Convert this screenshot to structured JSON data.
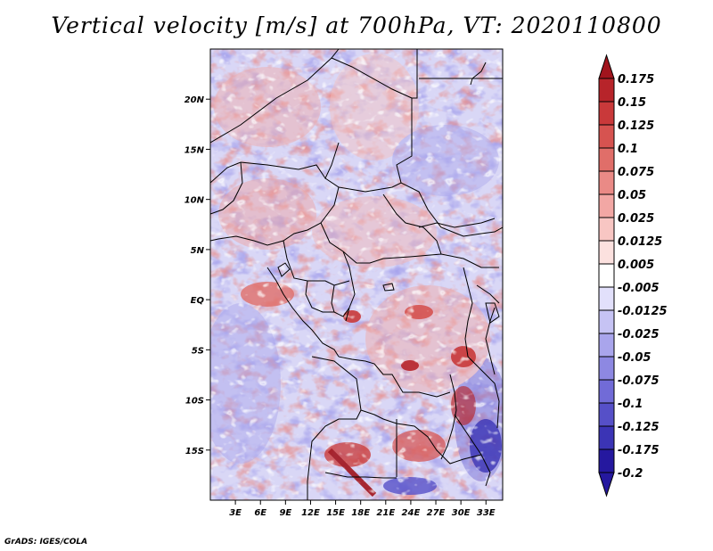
{
  "title": "Vertical velocity [m/s] at 700hPa, VT: 2020110800",
  "credit": "GrADS: IGES/COLA",
  "map": {
    "lon_range": [
      0,
      35
    ],
    "lat_range": [
      -20,
      25
    ],
    "lat_ticks": [
      {
        "lat": 20,
        "label": "20N"
      },
      {
        "lat": 15,
        "label": "15N"
      },
      {
        "lat": 10,
        "label": "10N"
      },
      {
        "lat": 5,
        "label": "5N"
      },
      {
        "lat": 0,
        "label": "EQ"
      },
      {
        "lat": -5,
        "label": "5S"
      },
      {
        "lat": -10,
        "label": "10S"
      },
      {
        "lat": -15,
        "label": "15S"
      }
    ],
    "lon_ticks": [
      {
        "lon": 3,
        "label": "3E"
      },
      {
        "lon": 6,
        "label": "6E"
      },
      {
        "lon": 9,
        "label": "9E"
      },
      {
        "lon": 12,
        "label": "12E"
      },
      {
        "lon": 15,
        "label": "15E"
      },
      {
        "lon": 18,
        "label": "18E"
      },
      {
        "lon": 21,
        "label": "21E"
      },
      {
        "lon": 24,
        "label": "24E"
      },
      {
        "lon": 27,
        "label": "27E"
      },
      {
        "lon": 30,
        "label": "30E"
      },
      {
        "lon": 33,
        "label": "33E"
      }
    ]
  },
  "colorbar": {
    "levels": [
      {
        "label": "0.175",
        "color": "#a1141d"
      },
      {
        "label": "0.15",
        "color": "#b7242a"
      },
      {
        "label": "0.125",
        "color": "#c9393a"
      },
      {
        "label": "0.1",
        "color": "#d65350"
      },
      {
        "label": "0.075",
        "color": "#e06e69"
      },
      {
        "label": "0.05",
        "color": "#ea8a86"
      },
      {
        "label": "0.025",
        "color": "#f2a7a4"
      },
      {
        "label": "0.0125",
        "color": "#f8c6c3"
      },
      {
        "label": "0.005",
        "color": "#fce1df"
      },
      {
        "label": "-0.005",
        "color": "#ffffff"
      },
      {
        "label": "-0.0125",
        "color": "#e2e0fb"
      },
      {
        "label": "-0.025",
        "color": "#c6c3f4"
      },
      {
        "label": "-0.05",
        "color": "#a9a5ec"
      },
      {
        "label": "-0.075",
        "color": "#8d88e2"
      },
      {
        "label": "-0.1",
        "color": "#716bd7"
      },
      {
        "label": "-0.125",
        "color": "#5650c8"
      },
      {
        "label": "-0.175",
        "color": "#3b34b5"
      },
      {
        "label": "-0.2",
        "color": "#25189f"
      }
    ],
    "top_color": "#a1141d",
    "bottom_color": "#25189f"
  }
}
